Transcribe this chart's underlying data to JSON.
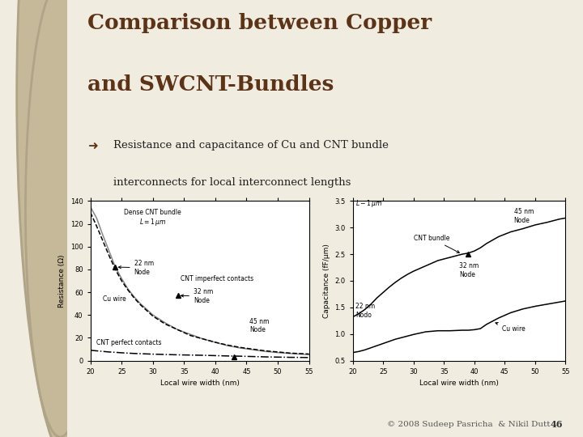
{
  "title_line1": "Comparison between Copper",
  "title_line2": "and SWCNT-Bundles",
  "bullet_line1": "Resistance and capacitance of Cu and CNT bundle",
  "bullet_line2": "interconnects for local interconnect lengths",
  "slide_bg": "#f0ece0",
  "left_bg": "#d4c9b0",
  "title_color": "#5c3317",
  "text_color": "#222222",
  "footer_text": "© 2008 Sudeep Pasricha  & Nikil Dutt",
  "footer_num": "46",
  "res_x": [
    20,
    21,
    22,
    23,
    24,
    25,
    26,
    27,
    28,
    29,
    30,
    32,
    34,
    36,
    38,
    40,
    42,
    44,
    46,
    48,
    50,
    52,
    54,
    55
  ],
  "res_cu": [
    135,
    125,
    110,
    96,
    82,
    72,
    63,
    56,
    50,
    45,
    40,
    33,
    27,
    23,
    19,
    16,
    13,
    11,
    9.5,
    8,
    7,
    6.2,
    5.5,
    5.2
  ],
  "res_cnt_imp": [
    130,
    118,
    105,
    92,
    80,
    70,
    62,
    55,
    49,
    44,
    39,
    32,
    27,
    22,
    19,
    16,
    13.5,
    11.5,
    10,
    8.5,
    7.5,
    6.5,
    6,
    5.7
  ],
  "res_cnt_perf": [
    9,
    8.5,
    8,
    7.5,
    7.2,
    6.8,
    6.5,
    6.2,
    6,
    5.8,
    5.6,
    5.3,
    5,
    4.8,
    4.6,
    4.3,
    4.0,
    3.8,
    3.5,
    3.2,
    3.0,
    2.8,
    2.7,
    2.6
  ],
  "cap_x": [
    20,
    21,
    22,
    23,
    24,
    25,
    26,
    27,
    28,
    29,
    30,
    32,
    34,
    36,
    38,
    39,
    40,
    41,
    42,
    44,
    46,
    48,
    50,
    52,
    54,
    55
  ],
  "cap_cnt": [
    1.32,
    1.38,
    1.46,
    1.56,
    1.68,
    1.78,
    1.88,
    1.97,
    2.05,
    2.12,
    2.18,
    2.28,
    2.38,
    2.44,
    2.5,
    2.52,
    2.56,
    2.62,
    2.7,
    2.83,
    2.92,
    2.98,
    3.05,
    3.1,
    3.16,
    3.18
  ],
  "cap_cu": [
    0.65,
    0.67,
    0.7,
    0.74,
    0.78,
    0.82,
    0.86,
    0.9,
    0.93,
    0.96,
    0.99,
    1.04,
    1.06,
    1.06,
    1.07,
    1.07,
    1.08,
    1.1,
    1.18,
    1.3,
    1.4,
    1.47,
    1.52,
    1.56,
    1.6,
    1.62
  ],
  "res_xlabel": "Local wire width (nm)",
  "res_ylabel": "Resistance (Ω)",
  "cap_xlabel": "Local wire width (nm)",
  "cap_ylabel": "Capacitance (fF/μm)"
}
